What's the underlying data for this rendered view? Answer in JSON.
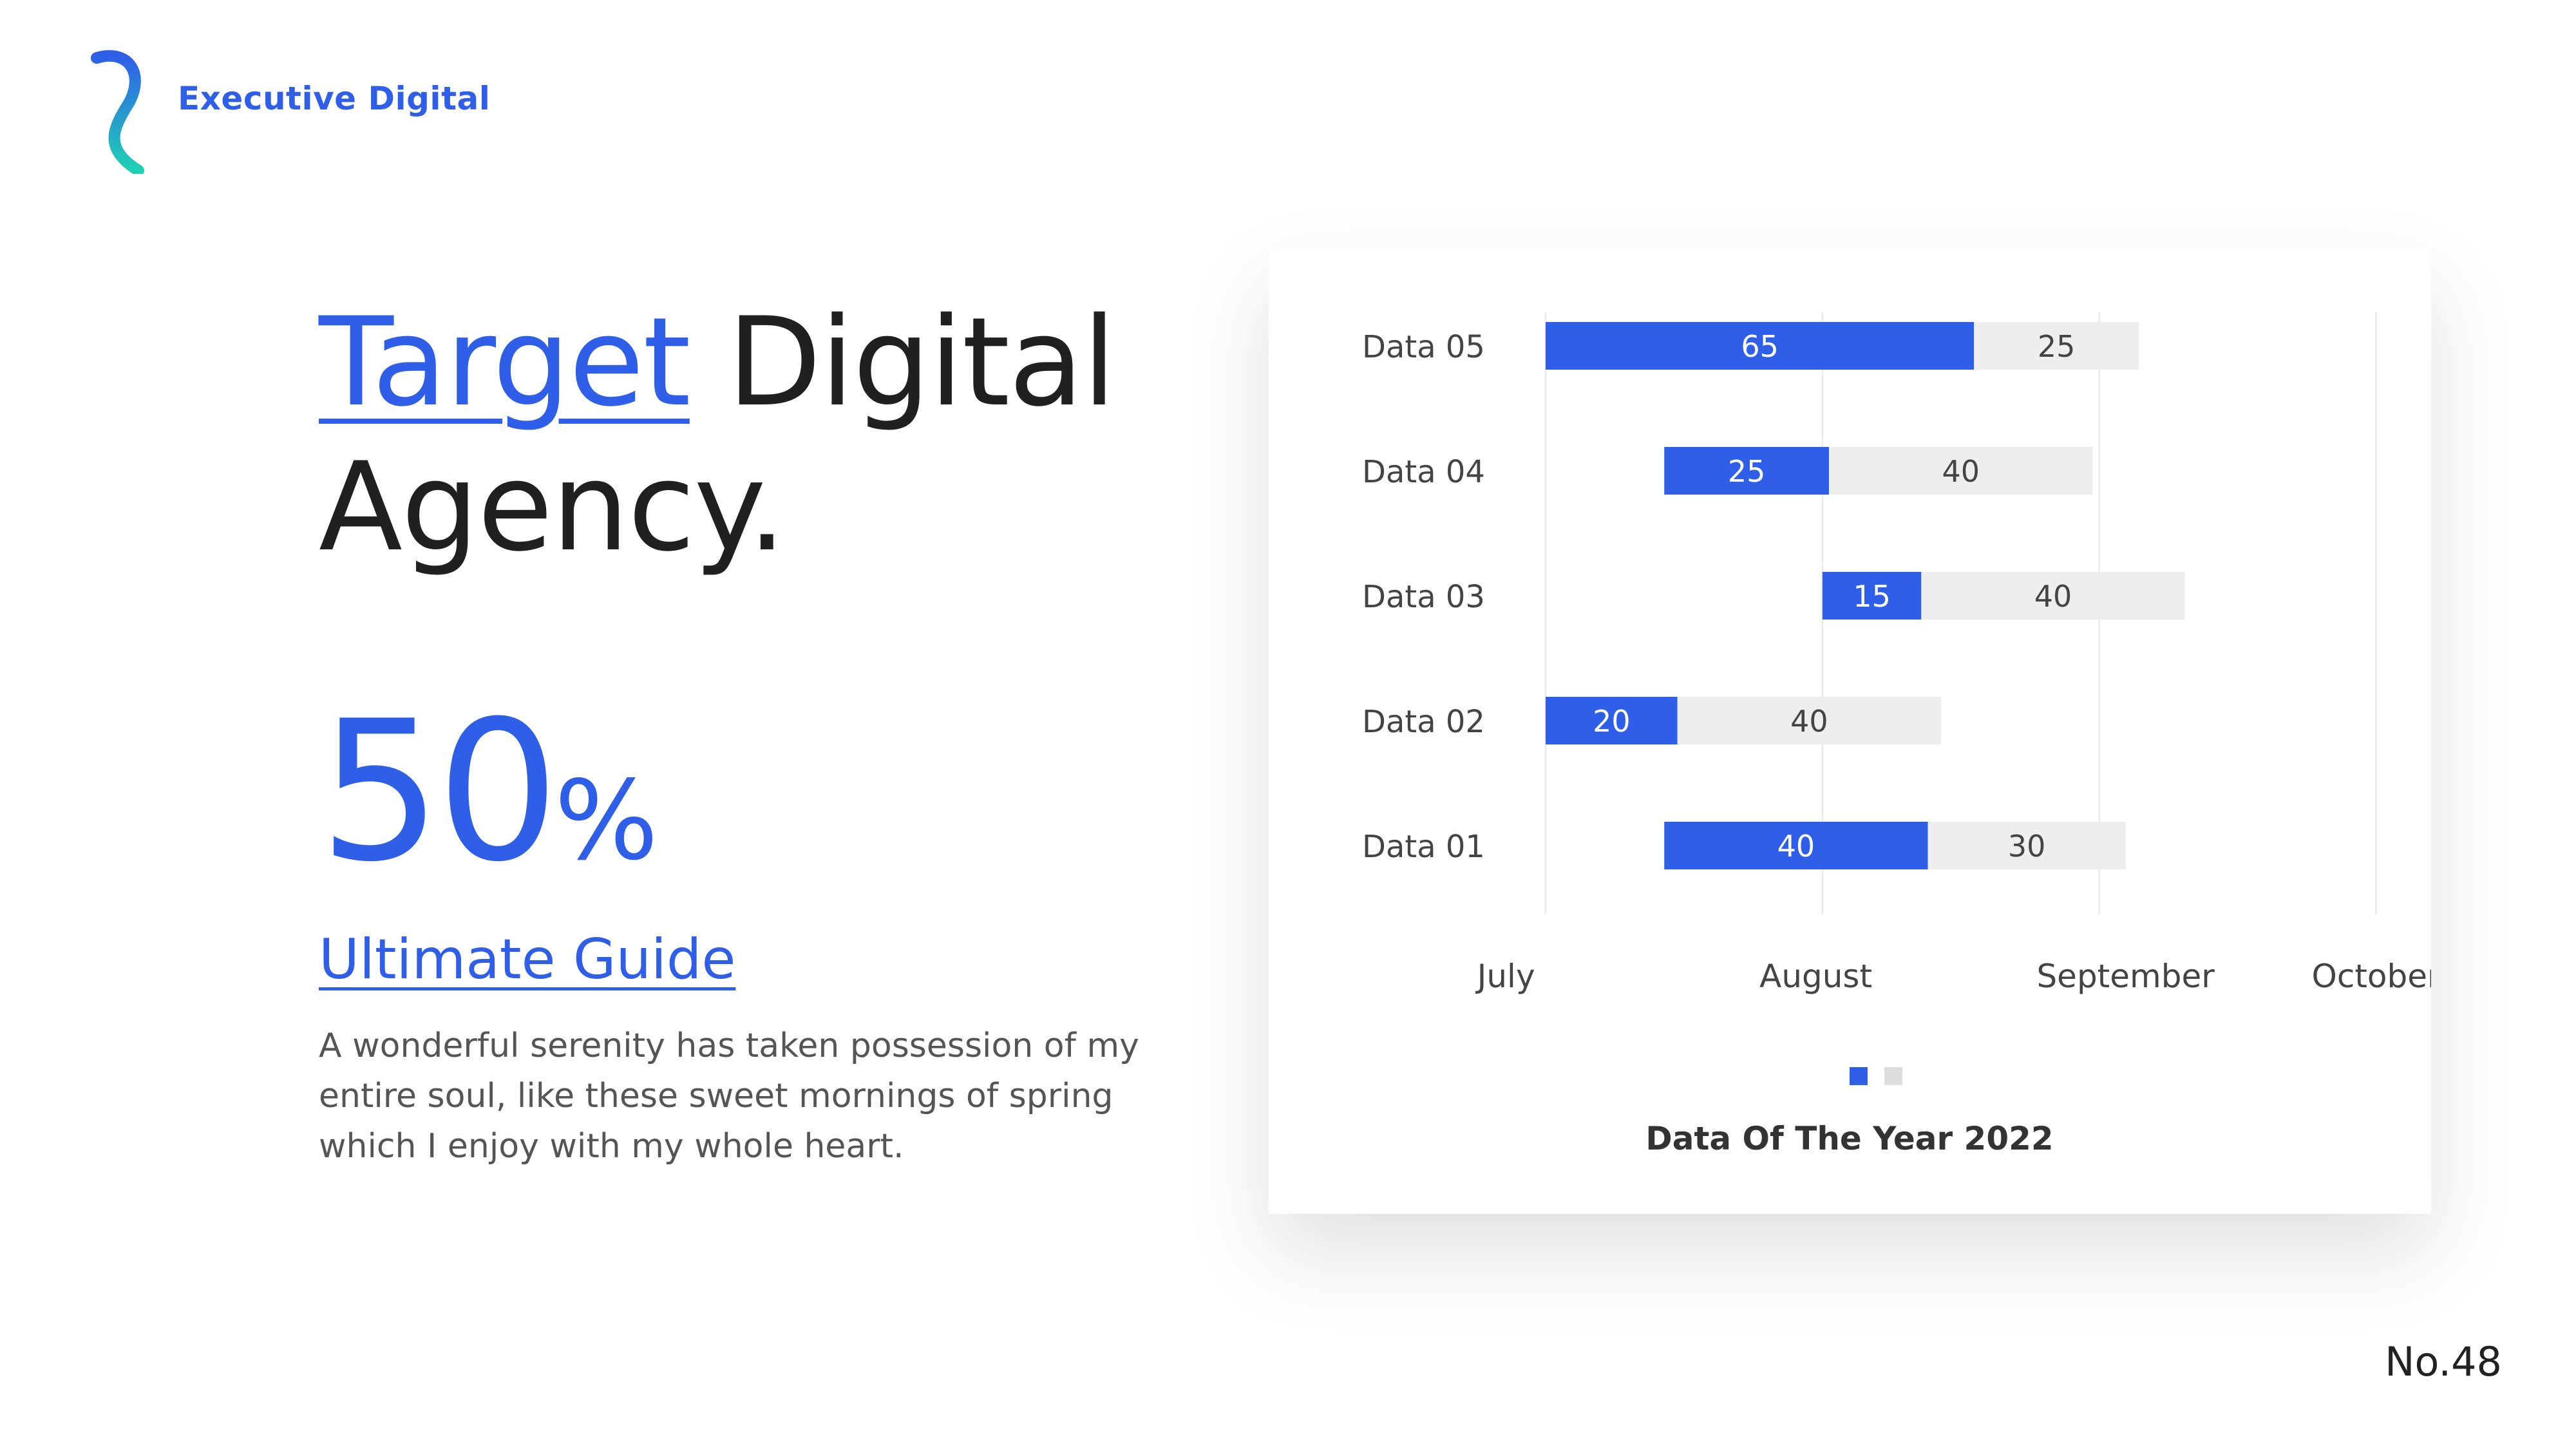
{
  "brand": {
    "name": "Executive Digital"
  },
  "headline": {
    "accent": "Target",
    "rest_line1": " Digital",
    "line2": "Agency."
  },
  "stat": {
    "value": "50",
    "unit": "%"
  },
  "guide": {
    "title": "Ultimate Guide",
    "description": "A wonderful serenity has taken possession of my entire soul, like these sweet mornings of spring which I enjoy with my whole heart."
  },
  "page_number": "No.48",
  "colors": {
    "accent": "#2f5fe8",
    "track": "#eeeeee",
    "text_dark": "#202020",
    "text_muted": "#555555"
  },
  "chart_data": {
    "type": "bar",
    "orientation": "horizontal",
    "stacked": true,
    "categories": [
      "Data 05",
      "Data 04",
      "Data 03",
      "Data 02",
      "Data 01"
    ],
    "series": [
      {
        "color": "#2f5fe8",
        "values": [
          65,
          25,
          15,
          20,
          40
        ],
        "label_color": "#ffffff"
      },
      {
        "color": "#eeeeee",
        "values": [
          25,
          40,
          40,
          40,
          30
        ],
        "label_color": "#444444"
      }
    ],
    "start_offsets": [
      0,
      18,
      42,
      0,
      18
    ],
    "xlim": [
      0,
      128
    ],
    "x_ticks": [
      "July",
      "August",
      "September",
      "October"
    ],
    "x_tick_values": [
      -6,
      41,
      88,
      126
    ],
    "grid_values": [
      0,
      42,
      84,
      126
    ],
    "grid": true,
    "legend": "bottom-center",
    "title": "Data Of The Year 2022"
  }
}
